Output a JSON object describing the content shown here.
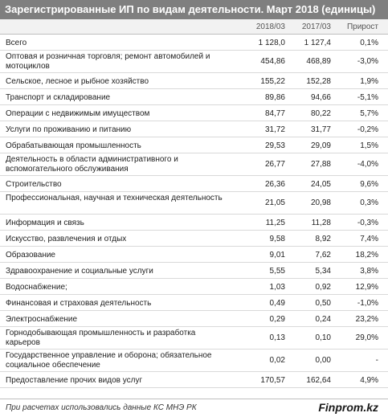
{
  "title": "Зарегистрированные ИП по видам деятельности. Март 2018 (единицы)",
  "columns": [
    "2018/03",
    "2017/03",
    "Прирост"
  ],
  "rows": [
    {
      "label": "Всего",
      "v2018": "1 128,0",
      "v2017": "1 127,4",
      "growth": "0,1%"
    },
    {
      "label": "Оптовая и розничная торговля; ремонт автомобилей и мотоциклов",
      "v2018": "454,86",
      "v2017": "468,89",
      "growth": "-3,0%"
    },
    {
      "label": "Сельское, лесное и рыбное хозяйство",
      "v2018": "155,22",
      "v2017": "152,28",
      "growth": "1,9%"
    },
    {
      "label": "Транспорт и складирование",
      "v2018": "89,86",
      "v2017": "94,66",
      "growth": "-5,1%"
    },
    {
      "label": "Операции с недвижимым имуществом",
      "v2018": "84,77",
      "v2017": "80,22",
      "growth": "5,7%"
    },
    {
      "label": "Услуги по проживанию и питанию",
      "v2018": "31,72",
      "v2017": "31,77",
      "growth": "-0,2%"
    },
    {
      "label": "Обрабатывающая промышленность",
      "v2018": "29,53",
      "v2017": "29,09",
      "growth": "1,5%"
    },
    {
      "label": "Деятельность в области административного и вспомогательного обслуживания",
      "v2018": "26,77",
      "v2017": "27,88",
      "growth": "-4,0%"
    },
    {
      "label": "Строительство",
      "v2018": "26,36",
      "v2017": "24,05",
      "growth": "9,6%"
    },
    {
      "label": "Профессиональная, научная и техническая деятельность",
      "v2018": "21,05",
      "v2017": "20,98",
      "growth": "0,3%"
    },
    {
      "label": "Информация и связь",
      "v2018": "11,25",
      "v2017": "11,28",
      "growth": "-0,3%"
    },
    {
      "label": "Искусство, развлечения и отдых",
      "v2018": "9,58",
      "v2017": "8,92",
      "growth": "7,4%"
    },
    {
      "label": "Образование",
      "v2018": "9,01",
      "v2017": "7,62",
      "growth": "18,2%"
    },
    {
      "label": "Здравоохранение и социальные услуги",
      "v2018": "5,55",
      "v2017": "5,34",
      "growth": "3,8%"
    },
    {
      "label": "Водоснабжение;",
      "v2018": "1,03",
      "v2017": "0,92",
      "growth": "12,9%"
    },
    {
      "label": "Финансовая и страховая деятельность",
      "v2018": "0,49",
      "v2017": "0,50",
      "growth": "-1,0%"
    },
    {
      "label": "Электроснабжение",
      "v2018": "0,29",
      "v2017": "0,24",
      "growth": "23,2%"
    },
    {
      "label": "Горнодобывающая промышленность и разработка карьеров",
      "v2018": "0,13",
      "v2017": "0,10",
      "growth": "29,0%"
    },
    {
      "label": "Государственное управление и оборона; обязательное социальное обеспечение",
      "v2018": "0,02",
      "v2017": "0,00",
      "growth": "-"
    },
    {
      "label": "Предоставление прочих видов услуг",
      "v2018": "170,57",
      "v2017": "162,64",
      "growth": "4,9%"
    }
  ],
  "footer": {
    "note": "При расчетах использовались данные КС МНЭ РК",
    "brand": "Finprom.kz"
  }
}
